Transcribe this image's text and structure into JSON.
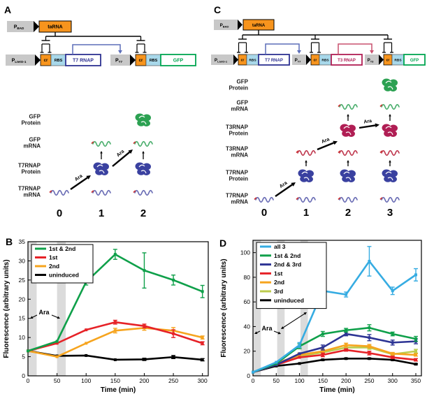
{
  "panel_a": {
    "label": "A",
    "circuit": {
      "inducer_promoter": "P",
      "inducer_promoter_sub": "BAD",
      "inducer_gene": "taRNA",
      "cassettes": [
        {
          "prom": "P",
          "prom_sub": "LtetO-1",
          "cr": "cr",
          "rbs": "RBS",
          "gene": "T7 RNAP",
          "gene_color": "#2E3192",
          "arrow_color": "#5B6DB8"
        },
        {
          "prom": "P",
          "prom_sub": "T7",
          "cr": "cr",
          "rbs": "RBS",
          "gene": "GFP",
          "gene_color": "#00A651"
        }
      ]
    },
    "ladder": {
      "row_labels": [
        "GFP Protein",
        "GFP mRNA",
        "T7RNAP Protein",
        "T7RNAP mRNA"
      ],
      "row_icons": [
        "blob:#2CA152",
        "mrna:#4CAF6E",
        "blob:#3A41A0",
        "mrna:#6A6DB5"
      ],
      "columns": [
        "0",
        "1",
        "2"
      ],
      "grid": [
        [
          0,
          0,
          1
        ],
        [
          0,
          1,
          1
        ],
        [
          0,
          1,
          1
        ],
        [
          1,
          1,
          1
        ]
      ],
      "up_arrows": [
        [
          1,
          1
        ],
        [
          2,
          1
        ]
      ],
      "ara_arrows": [
        [
          0,
          3,
          1,
          2
        ],
        [
          1,
          2,
          2,
          1
        ]
      ],
      "ara_label": "Ara"
    }
  },
  "panel_c": {
    "label": "C",
    "circuit": {
      "inducer_promoter": "P",
      "inducer_promoter_sub": "BAD",
      "inducer_gene": "taRNA",
      "cassettes": [
        {
          "prom": "P",
          "prom_sub": "LtetO-1",
          "cr": "cr",
          "rbs": "RBS",
          "gene": "T7 RNAP",
          "gene_color": "#2E3192",
          "arrow_color": "#5B6DB8"
        },
        {
          "prom": "P",
          "prom_sub": "T7",
          "cr": "cr",
          "rbs": "RBS",
          "gene": "T3 RNAP",
          "gene_color": "#B01E54",
          "arrow_color": "#C9506E"
        },
        {
          "prom": "P",
          "prom_sub": "T3",
          "cr": "cr",
          "rbs": "RBS",
          "gene": "GFP",
          "gene_color": "#00A651"
        }
      ]
    },
    "ladder": {
      "row_labels": [
        "GFP Protein",
        "GFP mRNA",
        "T3RNAP Protein",
        "T3RNAP mRNA",
        "T7RNAP Protein",
        "T7RNAP mRNA"
      ],
      "row_icons": [
        "blob:#2CA152",
        "mrna:#4CAF6E",
        "blob:#B01E54",
        "mrna:#C03A50",
        "blob:#3A41A0",
        "mrna:#6A6DB5"
      ],
      "columns": [
        "0",
        "1",
        "2",
        "3"
      ],
      "grid": [
        [
          0,
          0,
          0,
          1
        ],
        [
          0,
          0,
          1,
          1
        ],
        [
          0,
          0,
          1,
          1
        ],
        [
          0,
          1,
          1,
          1
        ],
        [
          0,
          1,
          1,
          1
        ],
        [
          1,
          1,
          1,
          1
        ]
      ],
      "up_arrows": [
        [
          2,
          1
        ],
        [
          3,
          1
        ],
        [
          1,
          3
        ],
        [
          2,
          3
        ],
        [
          3,
          3
        ]
      ],
      "ara_arrows": [
        [
          0,
          5,
          1,
          4
        ],
        [
          1,
          3,
          2,
          2.2
        ],
        [
          2,
          2,
          3,
          1.5
        ]
      ],
      "ara_label": "Ara"
    }
  },
  "chart_b": {
    "panel_label": "B",
    "chart_data": {
      "type": "line",
      "x": [
        0,
        50,
        100,
        150,
        200,
        250,
        300
      ],
      "xlabel": "Time (min)",
      "ylabel": "Fluorescence (arbitrary units)",
      "xlim": [
        0,
        310
      ],
      "ylim": [
        0,
        35
      ],
      "xticks": [
        0,
        50,
        100,
        150,
        200,
        250,
        300
      ],
      "yticks": [
        0,
        5,
        10,
        15,
        20,
        25,
        30,
        35
      ],
      "legend_position": "top-left",
      "grid": false,
      "ara_label": "Ara",
      "ara_bands": [
        [
          0,
          15
        ],
        [
          50,
          65
        ]
      ],
      "series": [
        {
          "name": "1st & 2nd",
          "color": "#0FA04A",
          "values": [
            6.5,
            9,
            24.5,
            31.7,
            27.5,
            25,
            22
          ],
          "err": [
            0,
            0,
            0.8,
            1.3,
            4.6,
            1.3,
            1.6
          ]
        },
        {
          "name": "1st",
          "color": "#E62227",
          "values": [
            6.5,
            8.5,
            12,
            14,
            13,
            11,
            8.5
          ],
          "err": [
            0,
            0,
            0,
            0.5,
            0.5,
            1,
            0.4
          ]
        },
        {
          "name": "2nd",
          "color": "#F6A41E",
          "values": [
            6.5,
            5,
            8.5,
            11.8,
            12.5,
            11.8,
            10
          ],
          "err": [
            0,
            0,
            0,
            0.6,
            0.6,
            0.8,
            0.4
          ]
        },
        {
          "name": "uninduced",
          "color": "#000000",
          "values": [
            6.5,
            5.2,
            5.3,
            4.2,
            4.3,
            4.9,
            4.2
          ],
          "err": [
            0,
            0,
            0,
            0,
            0.3,
            0.4,
            0.3
          ]
        }
      ]
    }
  },
  "chart_d": {
    "panel_label": "D",
    "chart_data": {
      "type": "line",
      "x": [
        0,
        50,
        100,
        150,
        200,
        250,
        300,
        350
      ],
      "xlabel": "Time (min)",
      "ylabel": "Fluorescence (arbitrary units)",
      "xlim": [
        0,
        362
      ],
      "ylim": [
        0,
        110
      ],
      "xticks": [
        0,
        50,
        100,
        150,
        200,
        250,
        300,
        350
      ],
      "yticks": [
        0,
        20,
        40,
        60,
        80,
        100
      ],
      "legend_position": "top-left",
      "grid": false,
      "ara_label": "Ara",
      "ara_bands": [
        [
          0,
          17
        ],
        [
          52,
          68
        ],
        [
          102,
          118
        ]
      ],
      "series": [
        {
          "name": "all 3",
          "color": "#36ACE2",
          "values": [
            3,
            11,
            25,
            69,
            66,
            93,
            69,
            82
          ],
          "err": [
            0,
            0,
            2,
            3,
            2,
            12,
            3,
            5
          ]
        },
        {
          "name": "1st & 2nd",
          "color": "#0FA04A",
          "values": [
            3,
            10,
            24,
            34,
            37,
            39,
            34,
            30
          ],
          "err": [
            0,
            0,
            2,
            2,
            1.5,
            2.5,
            1.5,
            2
          ]
        },
        {
          "name": "2nd & 3rd",
          "color": "#2D3494",
          "values": [
            3,
            9,
            18,
            23,
            34,
            31,
            27,
            28
          ],
          "err": [
            0,
            0,
            0,
            2,
            1.5,
            2.5,
            2,
            2
          ]
        },
        {
          "name": "1st",
          "color": "#E62227",
          "values": [
            3,
            9,
            15,
            17,
            21,
            18.5,
            15,
            13
          ],
          "err": [
            0,
            0,
            0,
            1.5,
            1,
            1.5,
            1,
            1
          ]
        },
        {
          "name": "2nd",
          "color": "#F6A41E",
          "values": [
            3,
            10,
            17,
            20,
            25,
            24,
            18,
            17
          ],
          "err": [
            0,
            0,
            1.5,
            1.5,
            1.5,
            1.5,
            1,
            1
          ]
        },
        {
          "name": "3rd",
          "color": "#BCCB4D",
          "values": [
            3,
            9,
            16,
            19,
            23,
            23,
            17.5,
            20
          ],
          "err": [
            0,
            0,
            0,
            1,
            1.5,
            1.5,
            1,
            1.5
          ]
        },
        {
          "name": "uninduced",
          "color": "#000000",
          "values": [
            3,
            8,
            10,
            13,
            14,
            14,
            13,
            9.5
          ],
          "err": [
            0,
            0,
            0,
            0.5,
            0.5,
            0.5,
            0.5,
            0.5
          ]
        }
      ]
    }
  },
  "style_colors": {
    "orange_box": "#F7941D",
    "rbs_box": "#A8D8EA",
    "promoter_box": "#C8C8C8",
    "ara_band": "#DBDBDB"
  }
}
